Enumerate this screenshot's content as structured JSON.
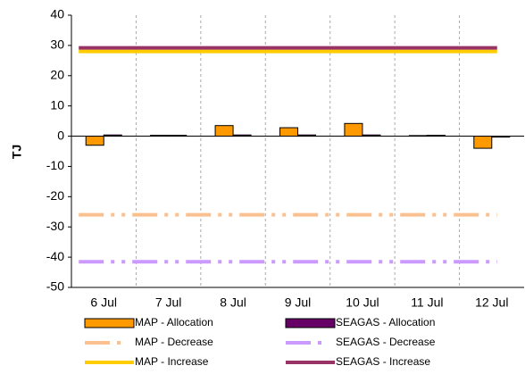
{
  "chart_data": {
    "type": "bar",
    "y_label": "TJ",
    "categories": [
      "6 Jul",
      "7 Jul",
      "8 Jul",
      "9 Jul",
      "10 Jul",
      "11 Jul",
      "12 Jul"
    ],
    "ylim": [
      -50,
      40
    ],
    "yticks": [
      -50,
      -40,
      -30,
      -20,
      -10,
      0,
      10,
      20,
      30,
      40
    ],
    "grid": "x-dashed",
    "series": [
      {
        "name": "MAP - Allocation",
        "kind": "bar",
        "color": "#ff9900",
        "values": [
          -3,
          0.3,
          3.5,
          2.8,
          4.2,
          0.2,
          -4
        ]
      },
      {
        "name": "SEAGAS - Allocation",
        "kind": "bar",
        "color": "#660066",
        "values": [
          0.4,
          0.3,
          0.4,
          0.4,
          0.4,
          0.3,
          -0.3
        ]
      },
      {
        "name": "MAP - Decrease",
        "kind": "line",
        "dash": "dashdot",
        "color": "#fac090",
        "values": [
          -26,
          -26,
          -26,
          -26,
          -26,
          -26,
          -26
        ]
      },
      {
        "name": "SEAGAS - Decrease",
        "kind": "line",
        "dash": "dashdot",
        "color": "#cc99ff",
        "values": [
          -41.5,
          -41.5,
          -41.5,
          -41.5,
          -41.5,
          -41.5,
          -41.5
        ]
      },
      {
        "name": "MAP - Increase",
        "kind": "line",
        "dash": "solid",
        "color": "#ffcc00",
        "values": [
          28,
          28,
          28,
          28,
          28,
          28,
          28
        ]
      },
      {
        "name": "SEAGAS - Increase",
        "kind": "line",
        "dash": "solid",
        "color": "#993366",
        "values": [
          29.2,
          29.2,
          29.2,
          29.2,
          29.2,
          29.2,
          29.2
        ]
      }
    ]
  }
}
